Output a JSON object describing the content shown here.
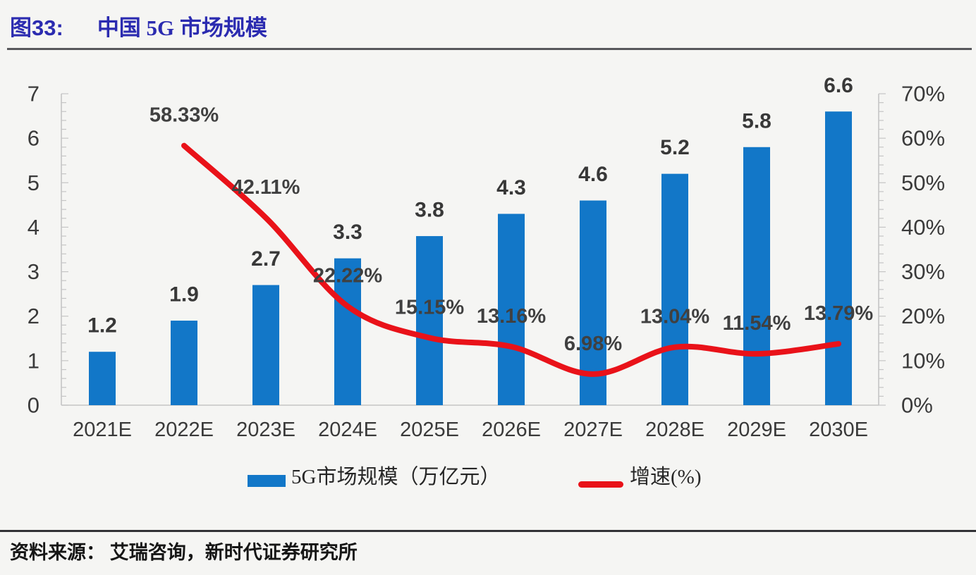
{
  "figure": {
    "label": "图33:",
    "title": "中国 5G 市场规模"
  },
  "colors": {
    "bar": "#1277C8",
    "line": "#E91219",
    "title_blue": "#2B2BB0",
    "axis_gray": "#C5C5C5",
    "label_gray": "#3A3A3A"
  },
  "chart_data": {
    "type": "bar",
    "subtype": "combo-bar-line",
    "categories": [
      "2021E",
      "2022E",
      "2023E",
      "2024E",
      "2025E",
      "2026E",
      "2027E",
      "2028E",
      "2029E",
      "2030E"
    ],
    "series": [
      {
        "name": "5G市场规模（万亿元）",
        "type": "bar",
        "axis": "left",
        "color": "#1277C8",
        "values": [
          1.2,
          1.9,
          2.7,
          3.3,
          3.8,
          4.3,
          4.6,
          5.2,
          5.8,
          6.6
        ],
        "labels": [
          "1.2",
          "1.9",
          "2.7",
          "3.3",
          "3.8",
          "4.3",
          "4.6",
          "5.2",
          "5.8",
          "6.6"
        ]
      },
      {
        "name": "增速(%)",
        "type": "line",
        "axis": "right",
        "color": "#E91219",
        "values": [
          null,
          58.33,
          42.11,
          22.22,
          15.15,
          13.16,
          6.98,
          13.04,
          11.54,
          13.79
        ],
        "labels": [
          null,
          "58.33%",
          "42.11%",
          "22.22%",
          "15.15%",
          "13.16%",
          "6.98%",
          "13.04%",
          "11.54%",
          "13.79%"
        ]
      }
    ],
    "left_axis": {
      "min": 0,
      "max": 7,
      "tick_labels": [
        "0",
        "1",
        "2",
        "3",
        "4",
        "5",
        "6",
        "7"
      ],
      "minor_step": 0.2
    },
    "right_axis": {
      "min": 0,
      "max": 70,
      "tick_labels": [
        "0%",
        "10%",
        "20%",
        "30%",
        "40%",
        "50%",
        "60%",
        "70%"
      ],
      "minor_step": 2
    },
    "grid": false,
    "legend_position": "bottom"
  },
  "legend": {
    "bar_label": "5G市场规模（万亿元）",
    "line_label": "增速(%)"
  },
  "source": {
    "text": "资料来源： 艾瑞咨询，新时代证券研究所"
  }
}
